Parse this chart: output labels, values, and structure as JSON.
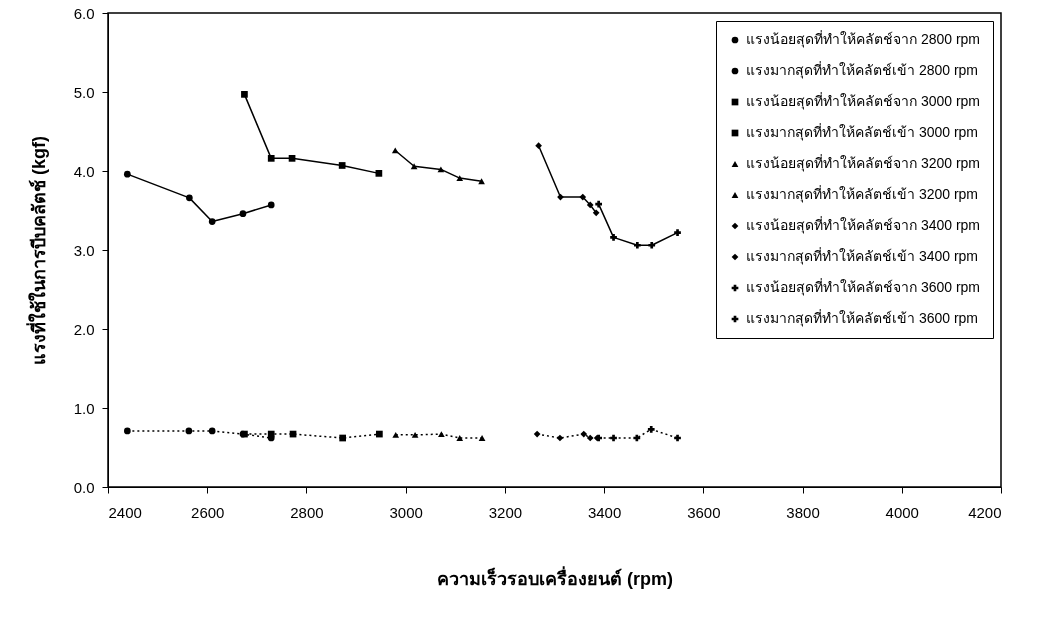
{
  "chart_data": {
    "type": "line",
    "xlabel": "ความเร็วรอบเครื่องยนต์ (rpm)",
    "ylabel": "แรงที่ใช้ในการบีบคลัตช์ (kgf)",
    "xlim": [
      2400,
      4200
    ],
    "xticks": [
      2400,
      2600,
      2800,
      3000,
      3200,
      3400,
      3600,
      3800,
      4000,
      4200
    ],
    "ylim": [
      0,
      6
    ],
    "yticks": [
      {
        "value": 0,
        "label": "0.0"
      },
      {
        "value": 1,
        "label": "1.0"
      },
      {
        "value": 2,
        "label": "2.0"
      },
      {
        "value": 3,
        "label": "3.0"
      },
      {
        "value": 4,
        "label": "4.0"
      },
      {
        "value": 5,
        "label": "5.0"
      },
      {
        "value": 6,
        "label": "6.0"
      }
    ],
    "grid": false,
    "legend": "top right",
    "series": [
      {
        "name": "แรงน้อยสุดที่ทำให้คลัตช์จาก 2800 rpm",
        "color": "#000000",
        "marker": "circle",
        "line_style": "solid",
        "x": [
          2439,
          2564,
          2610,
          2672,
          2729
        ],
        "values": [
          3.96,
          3.66,
          3.36,
          3.46,
          3.57
        ]
      },
      {
        "name": "แรงมากสุดที่ทำให้คลัตช์เข้า 2800 rpm",
        "color": "#000000",
        "marker": "circle",
        "line_style": "dotted",
        "x": [
          2439,
          2563,
          2610,
          2672,
          2729
        ],
        "values": [
          0.71,
          0.71,
          0.71,
          0.67,
          0.62
        ]
      },
      {
        "name": "แรงน้อยสุดที่ทำให้คลัตช์จาก 3000 rpm",
        "color": "#000000",
        "marker": "square",
        "line_style": "solid",
        "x": [
          2675,
          2729,
          2771,
          2872,
          2946
        ],
        "values": [
          4.97,
          4.16,
          4.16,
          4.07,
          3.97
        ]
      },
      {
        "name": "แรงมากสุดที่ทำให้คลัตช์เข้า 3000 rpm",
        "color": "#000000",
        "marker": "square",
        "line_style": "dotted",
        "x": [
          2675,
          2729,
          2773,
          2873,
          2947
        ],
        "values": [
          0.67,
          0.67,
          0.67,
          0.62,
          0.67
        ]
      },
      {
        "name": "แรงน้อยสุดที่ทำให้คลัตช์จาก 3200 rpm",
        "color": "#000000",
        "marker": "triangle",
        "line_style": "solid",
        "x": [
          2979,
          3017,
          3071,
          3109,
          3153
        ],
        "values": [
          4.26,
          4.06,
          4.02,
          3.91,
          3.87
        ]
      },
      {
        "name": "แรงมากสุดที่ทำให้คลัตช์เข้า 3200 rpm",
        "color": "#000000",
        "marker": "triangle",
        "line_style": "dotted",
        "x": [
          2980,
          3019,
          3072,
          3109,
          3154
        ],
        "values": [
          0.66,
          0.66,
          0.67,
          0.62,
          0.62
        ]
      },
      {
        "name": "แรงน้อยสุดที่ทำให้คลัตช์จาก 3400 rpm",
        "color": "#000000",
        "marker": "diamond",
        "line_style": "solid",
        "x": [
          3268,
          3312,
          3357,
          3372,
          3384
        ],
        "values": [
          4.32,
          3.67,
          3.67,
          3.57,
          3.47
        ]
      },
      {
        "name": "แรงมากสุดที่ทำให้คลัตช์เข้า 3400 rpm",
        "color": "#000000",
        "marker": "diamond",
        "line_style": "dotted",
        "x": [
          3265,
          3311,
          3359,
          3372,
          3386
        ],
        "values": [
          0.67,
          0.62,
          0.67,
          0.62,
          0.62
        ]
      },
      {
        "name": "แรงน้อยสุดที่ทำให้คลัตช์จาก 3600 rpm",
        "color": "#000000",
        "marker": "cross",
        "line_style": "solid",
        "x": [
          3389,
          3419,
          3467,
          3496,
          3548
        ],
        "values": [
          3.58,
          3.16,
          3.06,
          3.06,
          3.22
        ]
      },
      {
        "name": "แรงมากสุดที่ทำให้คลัตช์เข้า 3600 rpm",
        "color": "#000000",
        "marker": "cross",
        "line_style": "dotted",
        "x": [
          3389,
          3419,
          3466,
          3495,
          3548
        ],
        "values": [
          0.62,
          0.62,
          0.62,
          0.73,
          0.62
        ]
      }
    ]
  }
}
